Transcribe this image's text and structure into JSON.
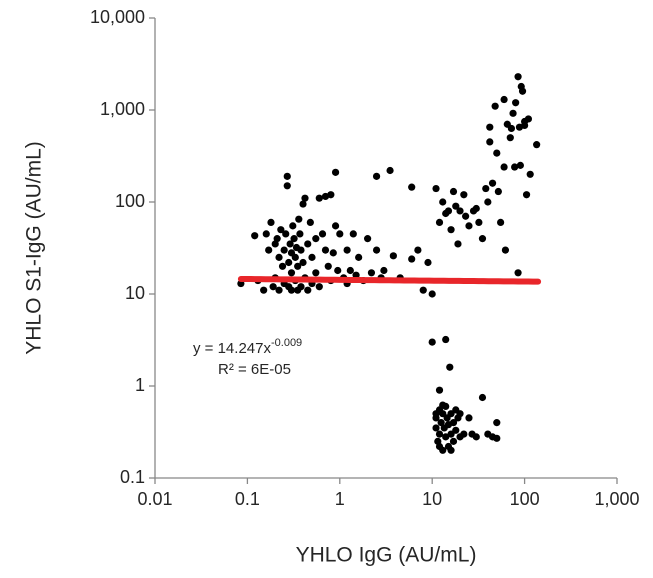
{
  "chart_data": {
    "type": "scatter",
    "x_label": "YHLO IgG (AU/mL)",
    "y_label": "YHLO S1-IgG (AU/mL)",
    "log_x": true,
    "log_y": true,
    "color": "#000000",
    "xlim": [
      0.01,
      1000
    ],
    "ylim": [
      0.1,
      10000
    ],
    "xticks": [
      0.01,
      0.1,
      1,
      10,
      100,
      {
        "value": 1000,
        "label": "1,000"
      }
    ],
    "yticks": [
      0.1,
      1,
      10,
      100,
      {
        "value": 1000,
        "label": "1,000"
      },
      {
        "value": 10000,
        "label": "10,000"
      }
    ],
    "x": [
      0.085,
      0.12,
      0.13,
      0.15,
      0.16,
      0.17,
      0.18,
      0.19,
      0.2,
      0.2,
      0.21,
      0.22,
      0.22,
      0.23,
      0.24,
      0.25,
      0.25,
      0.26,
      0.27,
      0.27,
      0.28,
      0.28,
      0.29,
      0.3,
      0.3,
      0.3,
      0.31,
      0.32,
      0.33,
      0.33,
      0.34,
      0.35,
      0.35,
      0.36,
      0.37,
      0.38,
      0.38,
      0.4,
      0.4,
      0.42,
      0.42,
      0.45,
      0.45,
      0.48,
      0.5,
      0.5,
      0.55,
      0.55,
      0.6,
      0.6,
      0.65,
      0.7,
      0.7,
      0.75,
      0.8,
      0.8,
      0.85,
      0.9,
      0.9,
      0.95,
      1,
      1.1,
      1.2,
      1.2,
      1.3,
      1.4,
      1.5,
      1.6,
      1.8,
      2,
      2.2,
      2.5,
      2.5,
      2.8,
      3,
      3.5,
      3.8,
      4.5,
      6,
      6,
      7,
      8,
      9,
      10,
      11,
      12,
      13,
      14,
      15,
      16,
      17,
      18,
      19,
      20,
      22,
      23,
      25,
      28,
      30,
      32,
      35,
      38,
      40,
      42,
      45,
      50,
      55,
      60,
      62,
      65,
      70,
      72,
      75,
      80,
      85,
      88,
      90,
      95,
      100,
      105,
      110,
      115,
      135,
      85,
      42,
      48,
      52,
      60,
      78,
      92,
      100,
      10,
      11,
      11,
      11.5,
      12,
      12,
      12,
      12.5,
      13,
      13,
      13.5,
      14,
      14,
      14,
      14.5,
      15,
      15,
      15.5,
      16,
      16,
      17,
      17,
      18,
      18,
      19,
      20,
      20,
      22,
      25,
      27,
      30,
      35,
      40,
      45,
      50,
      50,
      12,
      13,
      16,
      11
    ],
    "values": [
      13,
      43,
      14,
      11,
      45,
      30,
      60,
      12,
      35,
      15,
      40,
      25,
      11,
      50,
      20,
      30,
      13,
      45,
      190,
      150,
      22,
      12,
      35,
      28,
      17,
      11,
      55,
      40,
      25,
      14,
      32,
      20,
      11,
      65,
      45,
      30,
      12,
      95,
      22,
      110,
      15,
      35,
      11,
      60,
      25,
      13,
      40,
      17,
      110,
      12,
      45,
      30,
      115,
      20,
      120,
      14,
      28,
      210,
      55,
      18,
      45,
      15,
      30,
      13,
      18,
      45,
      16,
      25,
      14,
      40,
      17,
      190,
      30,
      15,
      18,
      220,
      26,
      15,
      145,
      24,
      30,
      11,
      22,
      10,
      140,
      60,
      100,
      75,
      80,
      50,
      130,
      90,
      35,
      80,
      120,
      70,
      55,
      80,
      85,
      60,
      40,
      140,
      100,
      450,
      160,
      340,
      60,
      1300,
      30,
      700,
      500,
      630,
      920,
      1200,
      2300,
      650,
      250,
      1600,
      750,
      120,
      800,
      200,
      420,
      17,
      650,
      1100,
      130,
      240,
      240,
      1800,
      680,
      3,
      0.35,
      0.45,
      0.25,
      0.9,
      0.55,
      0.3,
      0.4,
      0.2,
      0.5,
      0.35,
      3.2,
      0.6,
      0.28,
      0.45,
      0.38,
      0.22,
      1.6,
      0.5,
      0.3,
      0.4,
      0.25,
      0.55,
      0.33,
      0.45,
      0.28,
      0.5,
      0.3,
      0.45,
      0.3,
      0.28,
      0.75,
      0.3,
      0.28,
      0.4,
      0.27,
      0.22,
      0.62,
      0.2,
      0.5
    ],
    "trendline": {
      "coefficient": 14.247,
      "exponent": -0.009,
      "x_range": [
        0.085,
        140
      ],
      "color": "#e8262a"
    },
    "annotation": {
      "equation": "y = 14.247x",
      "exponent_text": "-0.009",
      "r_squared": "R² = 6E-05"
    }
  }
}
